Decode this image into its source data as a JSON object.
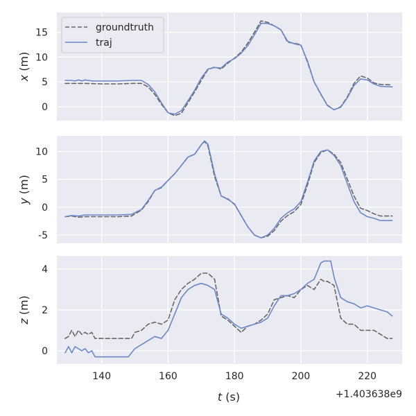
{
  "chart_data": {
    "type": "line",
    "layout": "3 stacked subplots, shared x axis",
    "background_color": "#eaeaf2",
    "grid": true,
    "xlabel": "t (s)",
    "x_offset_label": "+1.403638e9",
    "xlim": [
      126.5,
      230.5
    ],
    "xticks": [
      140,
      160,
      180,
      200,
      220
    ],
    "legend": {
      "placement": "top-left of first subplot",
      "entries": [
        {
          "label": "groundtruth",
          "style": "dashed",
          "color": "#666666"
        },
        {
          "label": "traj",
          "style": "solid",
          "color": "#6b87c4"
        }
      ]
    },
    "subplots": [
      {
        "ylabel": "x (m)",
        "ylim": [
          -2.8,
          19
        ],
        "yticks": [
          0,
          5,
          10,
          15
        ],
        "series": [
          {
            "name": "groundtruth",
            "x": [
              129,
              135,
              140,
              145,
              149,
              152,
              154,
              156,
              158,
              160,
              162,
              164,
              166,
              168,
              170,
              172,
              174,
              176,
              178,
              180,
              182,
              184,
              186,
              188,
              190,
              192,
              194,
              196,
              198,
              200,
              202,
              204,
              206,
              208,
              210,
              212,
              214,
              216,
              218,
              220,
              222,
              224,
              227.5
            ],
            "y": [
              4.7,
              4.7,
              4.6,
              4.6,
              4.7,
              4.7,
              4.0,
              2.5,
              0.5,
              -1.2,
              -1.8,
              -1.3,
              0.8,
              3.0,
              5.3,
              7.5,
              8.0,
              7.6,
              8.8,
              9.8,
              11.0,
              12.8,
              15.0,
              17.3,
              17.0,
              16.3,
              15.5,
              13.0,
              12.8,
              12.5,
              9.0,
              5.0,
              2.5,
              0.3,
              -0.6,
              0.0,
              2.0,
              4.7,
              6.2,
              5.8,
              4.8,
              4.5,
              4.4
            ]
          },
          {
            "name": "traj",
            "x": [
              129,
              131,
              132,
              133,
              134,
              135,
              137,
              140,
              145,
              149,
              152,
              154,
              156,
              158,
              160,
              162,
              164,
              166,
              168,
              170,
              172,
              174,
              176,
              178,
              180,
              182,
              184,
              186,
              188,
              190,
              192,
              194,
              196,
              198,
              200,
              202,
              204,
              206,
              208,
              210,
              212,
              214,
              216,
              218,
              220,
              222,
              224,
              227.5
            ],
            "y": [
              5.3,
              5.3,
              5.2,
              5.4,
              5.2,
              5.4,
              5.2,
              5.2,
              5.2,
              5.3,
              5.3,
              4.5,
              3.0,
              0.8,
              -1.2,
              -1.5,
              -0.8,
              1.2,
              3.3,
              5.8,
              7.6,
              7.9,
              7.8,
              9.0,
              9.7,
              10.8,
              12.3,
              14.5,
              16.8,
              16.8,
              16.3,
              15.5,
              13.2,
              12.7,
              12.4,
              9.2,
              5.0,
              2.6,
              0.2,
              -0.6,
              -0.1,
              1.8,
              4.3,
              5.6,
              5.4,
              4.6,
              4.1,
              4.0
            ]
          }
        ]
      },
      {
        "ylabel": "y (m)",
        "ylim": [
          -6.5,
          12.8
        ],
        "yticks": [
          -5,
          0,
          5,
          10
        ],
        "series": [
          {
            "name": "groundtruth",
            "x": [
              129,
              131,
              133,
              135,
              140,
              145,
              149,
              152,
              154,
              156,
              158,
              160,
              162,
              164,
              166,
              168,
              170,
              171,
              172,
              174,
              176,
              178,
              180,
              182,
              184,
              186,
              188,
              190,
              192,
              194,
              196,
              198,
              200,
              202,
              204,
              206,
              208,
              210,
              212,
              214,
              216,
              218,
              220,
              222,
              224,
              227.5
            ],
            "y": [
              -1.7,
              -1.6,
              -1.8,
              -1.7,
              -1.7,
              -1.7,
              -1.6,
              -0.5,
              1.0,
              3.0,
              3.5,
              4.8,
              6.0,
              7.5,
              9.0,
              9.5,
              11.2,
              11.8,
              11.0,
              5.5,
              2.0,
              1.5,
              0.5,
              -1.5,
              -3.5,
              -5.0,
              -5.5,
              -5.2,
              -4.2,
              -2.5,
              -1.5,
              -0.8,
              0.5,
              4.0,
              8.0,
              9.8,
              10.3,
              9.5,
              8.0,
              5.0,
              2.0,
              -0.2,
              -0.6,
              -1.2,
              -1.6,
              -1.6
            ]
          },
          {
            "name": "traj",
            "x": [
              129,
              131,
              133,
              135,
              140,
              145,
              149,
              152,
              154,
              156,
              158,
              160,
              162,
              164,
              166,
              168,
              170,
              171,
              172,
              174,
              176,
              178,
              180,
              182,
              184,
              186,
              188,
              190,
              192,
              194,
              196,
              198,
              200,
              202,
              204,
              206,
              208,
              210,
              212,
              214,
              216,
              218,
              220,
              222,
              224,
              227.5
            ],
            "y": [
              -1.7,
              -1.5,
              -1.6,
              -1.4,
              -1.4,
              -1.4,
              -1.3,
              -0.4,
              1.2,
              3.0,
              3.6,
              4.8,
              6.0,
              7.5,
              9.0,
              9.5,
              11.2,
              11.9,
              11.3,
              6.0,
              2.0,
              1.4,
              0.6,
              -1.5,
              -3.5,
              -5.0,
              -5.5,
              -5.0,
              -3.8,
              -2.0,
              -1.0,
              -0.3,
              1.0,
              4.5,
              8.3,
              10.0,
              10.3,
              9.3,
              7.5,
              4.2,
              1.0,
              -1.0,
              -1.7,
              -2.0,
              -2.4,
              -2.4
            ]
          }
        ]
      },
      {
        "ylabel": "z (m)",
        "ylim": [
          -0.65,
          4.65
        ],
        "yticks": [
          0,
          2,
          4
        ],
        "series": [
          {
            "name": "groundtruth",
            "x": [
              129,
              130,
              131,
              132,
              133,
              134,
              135,
              136,
              137,
              138,
              140,
              145,
              149,
              150,
              152,
              154,
              156,
              158,
              160,
              162,
              164,
              166,
              168,
              170,
              172,
              174,
              176,
              178,
              180,
              182,
              184,
              186,
              188,
              190,
              192,
              194,
              196,
              198,
              200,
              202,
              204,
              206,
              207,
              208,
              210,
              212,
              214,
              216,
              218,
              220,
              222,
              224,
              226,
              227.5
            ],
            "y": [
              0.6,
              0.7,
              1.0,
              0.7,
              1.0,
              0.8,
              0.9,
              0.8,
              0.9,
              0.6,
              0.6,
              0.6,
              0.6,
              0.9,
              1.0,
              1.3,
              1.4,
              1.3,
              1.5,
              2.5,
              3.0,
              3.3,
              3.5,
              3.8,
              3.8,
              3.5,
              1.7,
              1.5,
              1.2,
              0.9,
              1.2,
              1.3,
              1.5,
              1.8,
              2.5,
              2.6,
              2.7,
              2.6,
              3.0,
              3.2,
              3.0,
              3.5,
              3.4,
              3.4,
              3.2,
              1.6,
              1.3,
              1.3,
              1.0,
              1.0,
              1.0,
              0.8,
              0.6,
              0.6
            ]
          },
          {
            "name": "traj",
            "x": [
              129,
              130,
              131,
              132,
              133,
              134,
              135,
              136,
              137,
              138,
              140,
              145,
              148,
              150,
              152,
              154,
              156,
              158,
              160,
              162,
              164,
              166,
              168,
              170,
              172,
              174,
              176,
              178,
              180,
              182,
              184,
              186,
              188,
              190,
              192,
              194,
              196,
              198,
              200,
              202,
              204,
              206,
              207,
              208,
              209,
              210,
              212,
              214,
              216,
              218,
              220,
              222,
              224,
              226,
              227.5
            ],
            "y": [
              -0.1,
              0.2,
              -0.1,
              0.2,
              0.1,
              0.0,
              0.1,
              -0.1,
              0.0,
              -0.3,
              -0.3,
              -0.3,
              -0.3,
              0.1,
              0.3,
              0.5,
              0.7,
              0.6,
              1.0,
              1.8,
              2.6,
              3.0,
              3.2,
              3.3,
              3.2,
              3.0,
              1.8,
              1.6,
              1.3,
              1.1,
              1.2,
              1.3,
              1.4,
              1.6,
              2.2,
              2.7,
              2.7,
              2.8,
              3.0,
              3.3,
              3.5,
              4.3,
              4.4,
              4.4,
              4.4,
              3.6,
              2.6,
              2.4,
              2.3,
              2.1,
              2.2,
              2.1,
              2.0,
              1.9,
              1.7
            ]
          }
        ]
      }
    ]
  }
}
